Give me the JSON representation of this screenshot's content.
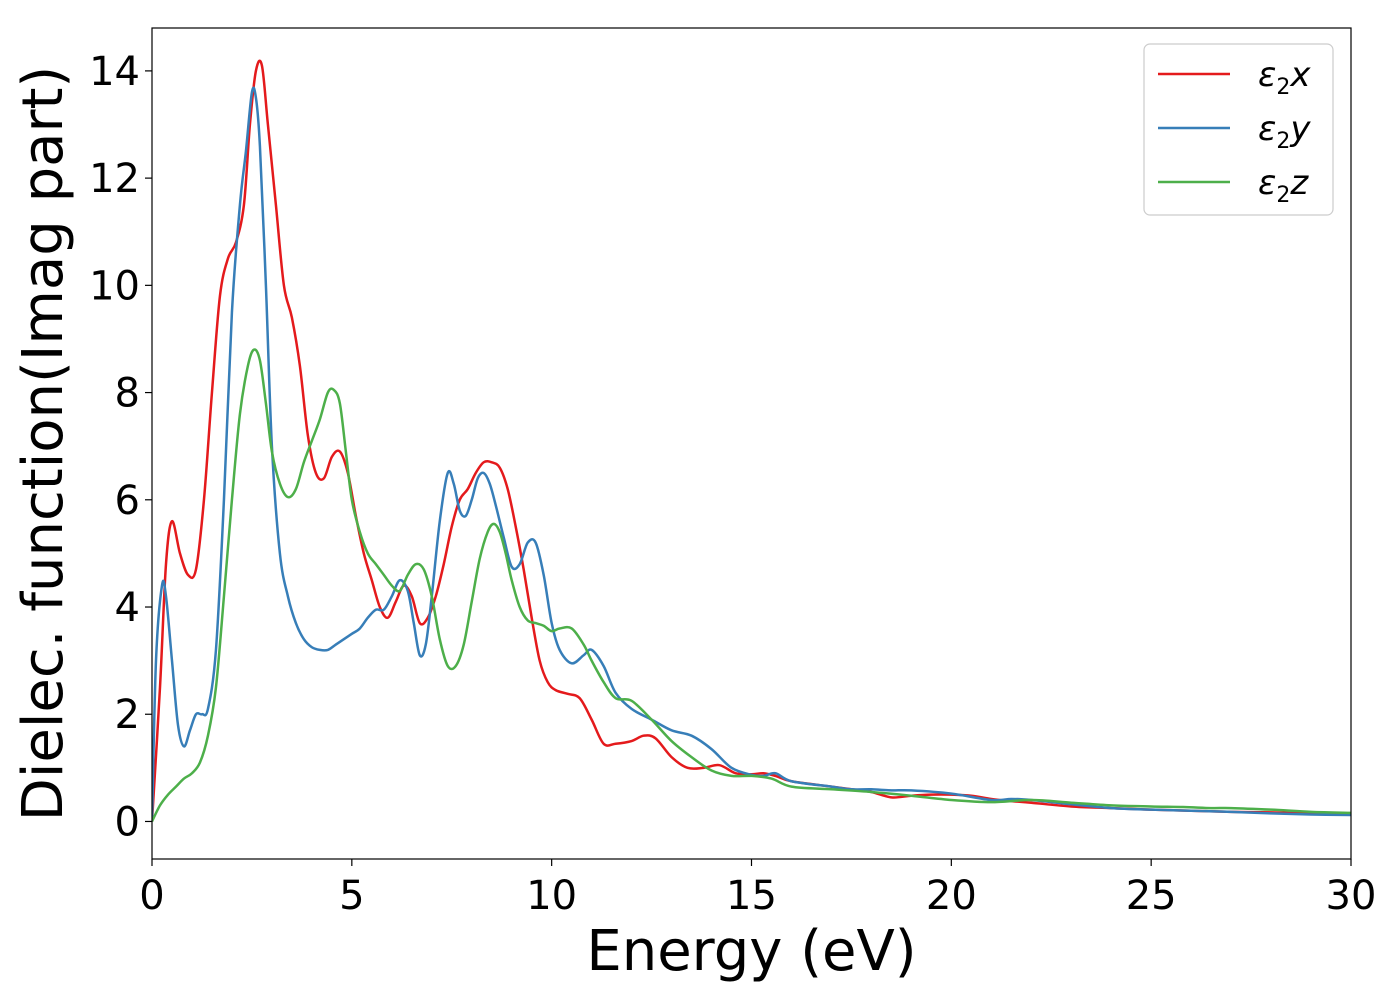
{
  "chart_data": {
    "type": "line",
    "xlabel": "Energy (eV)",
    "ylabel": "Dielec. function(Imag part)",
    "xlim": [
      0,
      30
    ],
    "ylim": [
      -0.7,
      14.8
    ],
    "xticks": [
      0,
      5,
      10,
      15,
      20,
      25,
      30
    ],
    "yticks": [
      0,
      2,
      4,
      6,
      8,
      10,
      12,
      14
    ],
    "grid": false,
    "legend_position": "top-right",
    "series": [
      {
        "name": "ε2x",
        "legend_base": "ε",
        "legend_sub": "2",
        "legend_tail": "x",
        "color": "#e41a1c",
        "x": [
          0,
          0.2,
          0.35,
          0.5,
          0.7,
          0.9,
          1.1,
          1.3,
          1.5,
          1.7,
          1.9,
          2.1,
          2.3,
          2.45,
          2.6,
          2.75,
          2.9,
          3.1,
          3.3,
          3.5,
          3.7,
          3.9,
          4.1,
          4.3,
          4.5,
          4.7,
          4.9,
          5.1,
          5.3,
          5.5,
          5.7,
          5.9,
          6.1,
          6.3,
          6.5,
          6.7,
          6.9,
          7.1,
          7.3,
          7.5,
          7.7,
          7.9,
          8.1,
          8.3,
          8.5,
          8.7,
          8.9,
          9.1,
          9.3,
          9.5,
          9.7,
          9.9,
          10.1,
          10.4,
          10.7,
          11.0,
          11.3,
          11.6,
          12.0,
          12.3,
          12.6,
          13.0,
          13.4,
          13.8,
          14.2,
          14.6,
          15.0,
          15.3,
          15.6,
          16.0,
          17.0,
          17.5,
          18.0,
          18.5,
          19.0,
          19.5,
          20.0,
          20.5,
          21.0,
          21.5,
          22.0,
          23.0,
          24.0,
          25.0,
          26.0,
          27.0,
          28.0,
          29.0,
          30.0
        ],
        "y": [
          0,
          2.5,
          4.8,
          5.6,
          5.0,
          4.6,
          4.7,
          6.0,
          8.0,
          9.8,
          10.5,
          10.8,
          11.5,
          13.0,
          14.0,
          14.1,
          13.0,
          11.5,
          10.0,
          9.4,
          8.5,
          7.2,
          6.5,
          6.4,
          6.8,
          6.9,
          6.5,
          5.7,
          5.0,
          4.5,
          4.0,
          3.8,
          4.1,
          4.4,
          4.2,
          3.7,
          3.8,
          4.2,
          4.8,
          5.5,
          6.0,
          6.2,
          6.5,
          6.7,
          6.7,
          6.6,
          6.2,
          5.5,
          4.7,
          3.8,
          3.0,
          2.6,
          2.45,
          2.38,
          2.3,
          1.9,
          1.45,
          1.45,
          1.5,
          1.6,
          1.55,
          1.2,
          1.0,
          1.0,
          1.05,
          0.9,
          0.88,
          0.9,
          0.85,
          0.75,
          0.65,
          0.6,
          0.55,
          0.45,
          0.48,
          0.5,
          0.5,
          0.48,
          0.42,
          0.38,
          0.35,
          0.28,
          0.25,
          0.22,
          0.2,
          0.18,
          0.17,
          0.15,
          0.13
        ]
      },
      {
        "name": "ε2y",
        "legend_base": "ε",
        "legend_sub": "2",
        "legend_tail": "y",
        "color": "#377eb8",
        "x": [
          0,
          0.1,
          0.25,
          0.35,
          0.5,
          0.65,
          0.8,
          0.95,
          1.1,
          1.25,
          1.4,
          1.6,
          1.8,
          2.0,
          2.2,
          2.35,
          2.5,
          2.6,
          2.7,
          2.85,
          3.0,
          3.2,
          3.4,
          3.6,
          3.8,
          4.0,
          4.2,
          4.4,
          4.6,
          4.8,
          5.0,
          5.2,
          5.4,
          5.6,
          5.8,
          6.0,
          6.2,
          6.4,
          6.55,
          6.7,
          6.85,
          7.0,
          7.2,
          7.4,
          7.55,
          7.7,
          7.85,
          8.0,
          8.15,
          8.3,
          8.45,
          8.6,
          8.8,
          9.0,
          9.2,
          9.4,
          9.6,
          9.8,
          10.0,
          10.2,
          10.5,
          10.8,
          11.0,
          11.3,
          11.6,
          12.0,
          12.5,
          13.0,
          13.5,
          14.0,
          14.5,
          15.0,
          15.3,
          15.6,
          16.0,
          17.0,
          17.5,
          18.0,
          18.5,
          19.0,
          20.0,
          21.0,
          21.5,
          22.0,
          23.0,
          24.0,
          25.0,
          26.0,
          27.0,
          28.0,
          29.0,
          30.0
        ],
        "y": [
          0,
          3.0,
          4.4,
          4.2,
          3.0,
          1.8,
          1.4,
          1.7,
          2.0,
          2.0,
          2.1,
          3.2,
          6.0,
          9.5,
          11.5,
          12.5,
          13.6,
          13.5,
          12.6,
          10.0,
          7.0,
          5.0,
          4.2,
          3.7,
          3.4,
          3.25,
          3.2,
          3.2,
          3.3,
          3.4,
          3.5,
          3.6,
          3.8,
          3.95,
          3.95,
          4.2,
          4.5,
          4.3,
          3.7,
          3.1,
          3.3,
          4.2,
          5.6,
          6.5,
          6.3,
          5.8,
          5.7,
          6.0,
          6.4,
          6.5,
          6.3,
          5.9,
          5.3,
          4.75,
          4.8,
          5.2,
          5.2,
          4.6,
          3.7,
          3.2,
          2.95,
          3.1,
          3.2,
          2.9,
          2.4,
          2.1,
          1.9,
          1.7,
          1.6,
          1.35,
          1.0,
          0.87,
          0.85,
          0.9,
          0.75,
          0.65,
          0.6,
          0.6,
          0.58,
          0.58,
          0.52,
          0.4,
          0.42,
          0.4,
          0.32,
          0.25,
          0.22,
          0.2,
          0.18,
          0.15,
          0.13,
          0.12
        ]
      },
      {
        "name": "ε2z",
        "legend_base": "ε",
        "legend_sub": "2",
        "legend_tail": "z",
        "color": "#4daf4a",
        "x": [
          0,
          0.2,
          0.4,
          0.6,
          0.8,
          1.0,
          1.2,
          1.4,
          1.6,
          1.8,
          2.0,
          2.2,
          2.4,
          2.55,
          2.7,
          2.85,
          3.0,
          3.2,
          3.4,
          3.6,
          3.8,
          4.0,
          4.2,
          4.4,
          4.55,
          4.7,
          4.85,
          5.0,
          5.2,
          5.4,
          5.6,
          5.8,
          6.0,
          6.2,
          6.4,
          6.6,
          6.8,
          7.0,
          7.2,
          7.4,
          7.6,
          7.8,
          8.0,
          8.2,
          8.4,
          8.55,
          8.7,
          8.85,
          9.0,
          9.2,
          9.4,
          9.6,
          9.8,
          10.0,
          10.2,
          10.5,
          10.8,
          11.0,
          11.3,
          11.6,
          12.0,
          12.5,
          13.0,
          13.5,
          14.0,
          14.5,
          15.0,
          15.5,
          16.0,
          17.0,
          18.0,
          19.0,
          20.0,
          21.0,
          22.0,
          23.0,
          24.0,
          25.0,
          25.8,
          26.5,
          27.0,
          28.0,
          29.0,
          30.0
        ],
        "y": [
          0,
          0.3,
          0.5,
          0.65,
          0.8,
          0.9,
          1.1,
          1.6,
          2.5,
          4.2,
          6.0,
          7.6,
          8.5,
          8.8,
          8.6,
          7.8,
          6.9,
          6.3,
          6.05,
          6.2,
          6.7,
          7.1,
          7.5,
          8.0,
          8.05,
          7.8,
          6.9,
          6.0,
          5.4,
          5.0,
          4.8,
          4.6,
          4.4,
          4.3,
          4.6,
          4.8,
          4.7,
          4.2,
          3.4,
          2.9,
          2.9,
          3.3,
          4.1,
          4.9,
          5.4,
          5.55,
          5.4,
          5.0,
          4.5,
          4.0,
          3.75,
          3.7,
          3.65,
          3.55,
          3.6,
          3.6,
          3.3,
          3.0,
          2.6,
          2.3,
          2.25,
          1.9,
          1.5,
          1.2,
          0.95,
          0.85,
          0.85,
          0.8,
          0.65,
          0.6,
          0.55,
          0.48,
          0.4,
          0.36,
          0.4,
          0.35,
          0.3,
          0.28,
          0.27,
          0.25,
          0.25,
          0.22,
          0.18,
          0.16
        ]
      }
    ]
  }
}
